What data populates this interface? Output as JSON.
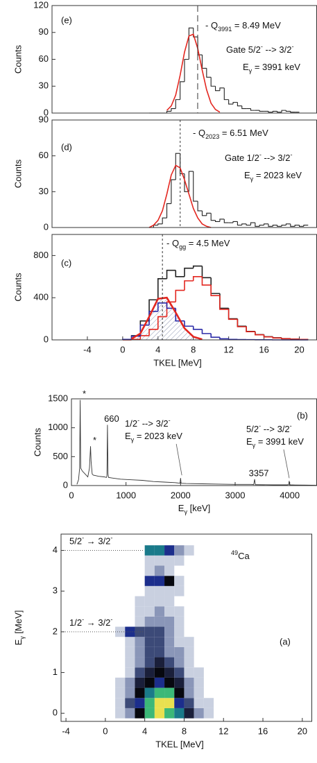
{
  "chart_data": [
    {
      "type": "histogram",
      "label": "(e)",
      "ylabel": "Counts",
      "xlim": [
        -8,
        22
      ],
      "ylim": [
        0,
        120
      ],
      "yticks": [
        0,
        30,
        60,
        90,
        120
      ],
      "bins": [
        3,
        3.5,
        4,
        4.5,
        5,
        5.5,
        6,
        6.5,
        7,
        7.5,
        8,
        8.5,
        9,
        9.5,
        10,
        10.5,
        11,
        11.5,
        12,
        12.5,
        13,
        13.5,
        14,
        14.5,
        15,
        15.5,
        16,
        16.5,
        17,
        17.5,
        18,
        18.5,
        19,
        19.5,
        20
      ],
      "series": [
        {
          "color": "#222222",
          "values": [
            0,
            0,
            0,
            0,
            2,
            5,
            15,
            35,
            60,
            95,
            85,
            65,
            50,
            40,
            30,
            25,
            28,
            15,
            10,
            12,
            8,
            5,
            5,
            3,
            3,
            2,
            2,
            1,
            2,
            1,
            3,
            2,
            1,
            1
          ]
        }
      ],
      "fits": [
        {
          "color": "#e3261f",
          "x": [
            5,
            5.5,
            6,
            6.5,
            7,
            7.5,
            8,
            8.5,
            9,
            9.5,
            10,
            10.5,
            11
          ],
          "values": [
            3,
            8,
            20,
            42,
            68,
            86,
            88,
            72,
            48,
            26,
            11,
            4,
            1
          ]
        }
      ],
      "marker": {
        "value": 8.49,
        "dash": "9,5"
      },
      "annotations": [
        {
          "parts": [
            "- Q",
            "3991",
            " = 8.49 MeV"
          ]
        },
        {
          "parts": [
            "Gate 5/2",
            "-",
            " --> 3/2",
            "-"
          ]
        },
        {
          "parts": [
            "E",
            "γ",
            " = 3991 keV"
          ]
        }
      ]
    },
    {
      "type": "histogram",
      "label": "(d)",
      "ylabel": "Counts",
      "xlim": [
        -8,
        22
      ],
      "ylim": [
        0,
        90
      ],
      "yticks": [
        0,
        30,
        60,
        90
      ],
      "bins": [
        3,
        3.5,
        4,
        4.5,
        5,
        5.5,
        6,
        6.5,
        7,
        7.5,
        8,
        8.5,
        9,
        9.5,
        10,
        10.5,
        11,
        11.5,
        12,
        12.5,
        13,
        13.5,
        14,
        14.5,
        15,
        15.5,
        16,
        16.5,
        17,
        17.5,
        18,
        18.5,
        19,
        19.5,
        20,
        20.5,
        21
      ],
      "series": [
        {
          "color": "#222222",
          "values": [
            0,
            2,
            3,
            8,
            20,
            40,
            62,
            45,
            30,
            47,
            22,
            14,
            10,
            12,
            6,
            5,
            7,
            4,
            4,
            5,
            2,
            3,
            2,
            4,
            1,
            2,
            3,
            1,
            2,
            1,
            2,
            3,
            1,
            2,
            1,
            2
          ]
        }
      ],
      "fits": [
        {
          "color": "#e3261f",
          "x": [
            3,
            3.5,
            4,
            4.5,
            5,
            5.5,
            6,
            6.5,
            7,
            7.5,
            8,
            8.5,
            9,
            9.5,
            10
          ],
          "values": [
            0,
            2,
            6,
            14,
            28,
            44,
            52,
            50,
            40,
            28,
            16,
            8,
            3,
            1,
            0
          ]
        }
      ],
      "marker": {
        "value": 6.51,
        "dash": "3,3"
      },
      "annotations": [
        {
          "parts": [
            "- Q",
            "2023",
            " = 6.51 MeV"
          ]
        },
        {
          "parts": [
            "Gate 1/2",
            "-",
            " --> 3/2",
            "-"
          ]
        },
        {
          "parts": [
            "E",
            "γ",
            " = 2023 keV"
          ]
        }
      ]
    },
    {
      "type": "histogram",
      "label": "(c)",
      "ylabel": "Counts",
      "xlabel": "TKEL [MeV]",
      "xlim": [
        -8,
        22
      ],
      "ylim": [
        0,
        1000
      ],
      "yticks": [
        0,
        400,
        800
      ],
      "xticks": [
        -4,
        0,
        4,
        8,
        12,
        16,
        20
      ],
      "bins": [
        0,
        1,
        2,
        3,
        4,
        5,
        6,
        7,
        8,
        9,
        10,
        11,
        12,
        13,
        14,
        15,
        16,
        17,
        18,
        19,
        20,
        21
      ],
      "series": [
        {
          "color": "#222222",
          "values": [
            5,
            40,
            180,
            380,
            580,
            660,
            600,
            680,
            700,
            590,
            440,
            300,
            200,
            130,
            80,
            50,
            30,
            20,
            12,
            8,
            5
          ]
        },
        {
          "color": "#e3261f",
          "values": [
            0,
            5,
            40,
            100,
            220,
            360,
            470,
            560,
            600,
            520,
            420,
            290,
            195,
            125,
            78,
            48,
            28,
            18,
            11,
            7,
            5
          ]
        },
        {
          "color": "#2b2ba8",
          "values": [
            5,
            35,
            140,
            270,
            350,
            300,
            180,
            130,
            100,
            60,
            25,
            10,
            5,
            3,
            2,
            1,
            1,
            0,
            0,
            0,
            0
          ]
        }
      ],
      "fits": [
        {
          "color": "#e3261f",
          "hatched": true,
          "x": [
            1,
            2,
            3,
            4,
            5,
            6,
            7,
            8,
            9
          ],
          "values": [
            10,
            60,
            220,
            390,
            400,
            260,
            110,
            30,
            5
          ]
        }
      ],
      "marker": {
        "value": 4.5,
        "dash": "3,3"
      },
      "annotations": [
        {
          "parts": [
            "- Q",
            "gg",
            " = 4.5 MeV"
          ]
        }
      ]
    },
    {
      "type": "line",
      "label": "(b)",
      "ylabel": "Counts",
      "xlabel": [
        "E",
        "γ",
        " [keV]"
      ],
      "xlim": [
        0,
        4500
      ],
      "ylim": [
        0,
        1500
      ],
      "xticks": [
        0,
        1000,
        2000,
        3000,
        4000
      ],
      "yticks": [
        0,
        500,
        1000,
        1500
      ],
      "color": "#333333",
      "x": [
        100,
        130,
        150,
        160,
        170,
        200,
        250,
        300,
        330,
        350,
        360,
        380,
        400,
        450,
        500,
        600,
        640,
        650,
        660,
        670,
        680,
        750,
        900,
        1100,
        1300,
        1500,
        1700,
        1900,
        1990,
        2000,
        2010,
        2100,
        2400,
        2700,
        3000,
        3300,
        3340,
        3357,
        3370,
        3400,
        3700,
        3950,
        3980,
        3991,
        4000,
        4010,
        4100,
        4300,
        4500
      ],
      "values": [
        20,
        100,
        300,
        1480,
        300,
        250,
        200,
        150,
        300,
        680,
        420,
        200,
        180,
        170,
        160,
        150,
        140,
        160,
        1050,
        200,
        140,
        130,
        110,
        100,
        90,
        70,
        60,
        50,
        40,
        130,
        40,
        35,
        30,
        25,
        20,
        20,
        15,
        110,
        15,
        15,
        12,
        12,
        15,
        80,
        20,
        12,
        10,
        8,
        5
      ],
      "peaks": [
        {
          "label": "*",
          "x": 160
        },
        {
          "label": "*",
          "x": 350
        },
        {
          "label": "660",
          "x": 660
        },
        {
          "label": "3357",
          "x": 3357
        }
      ],
      "transition_color": "#2b2ba8",
      "transitions": [
        {
          "x": 2023,
          "lines": [
            [
              "1/2",
              "-",
              " --> 3/2",
              "-"
            ],
            [
              "E",
              "γ",
              " = 2023 keV"
            ]
          ]
        },
        {
          "x": 3991,
          "lines": [
            [
              "5/2",
              "-",
              " --> 3/2",
              "-"
            ],
            [
              "E",
              "γ",
              " = 3991 keV"
            ]
          ]
        }
      ]
    },
    {
      "type": "heatmap",
      "label": "(a)",
      "xlabel": "TKEL  [MeV]",
      "ylabel": [
        "E",
        "γ",
        "  [MeV]"
      ],
      "xlim": [
        -4.5,
        21
      ],
      "ylim": [
        -0.2,
        4.4
      ],
      "xticks": [
        -4,
        0,
        4,
        8,
        12,
        16,
        20
      ],
      "yticks": [
        0,
        1,
        2,
        3,
        4
      ],
      "nucleus": [
        "49",
        "Ca"
      ],
      "lines": [
        {
          "y": 4,
          "parts": [
            "5/2",
            "-",
            " → 3/2",
            "-"
          ]
        },
        {
          "y": 2,
          "parts": [
            "1/2",
            "-",
            " → 3/2",
            "-"
          ]
        }
      ],
      "colors": [
        "none",
        "#c9d0e0",
        "#8a96b8",
        "#3c4a78",
        "#1a1f3a",
        "#07080f",
        "#1c2e8c",
        "#1a7a8a",
        "#3cb878",
        "#e8e050"
      ],
      "xbins": [
        0,
        1,
        2,
        3,
        4,
        5,
        6,
        7,
        8,
        9,
        10,
        11
      ],
      "ybins": [
        -0.125,
        0.125,
        0.375,
        0.625,
        0.875,
        1.125,
        1.375,
        1.625,
        1.875,
        2.125,
        2.375,
        2.625,
        2.875,
        3.125,
        3.375,
        3.625,
        3.875,
        4.125
      ],
      "z": [
        [
          0,
          1,
          2,
          5,
          8,
          9,
          8,
          7,
          4,
          2,
          1
        ],
        [
          0,
          1,
          3,
          6,
          8,
          9,
          9,
          6,
          3,
          1,
          1
        ],
        [
          0,
          1,
          2,
          5,
          7,
          8,
          8,
          5,
          2,
          1,
          0
        ],
        [
          0,
          1,
          2,
          4,
          5,
          6,
          5,
          4,
          2,
          1,
          0
        ],
        [
          0,
          0,
          1,
          3,
          4,
          5,
          4,
          3,
          1,
          1,
          0
        ],
        [
          0,
          0,
          1,
          2,
          3,
          4,
          3,
          2,
          1,
          0,
          0
        ],
        [
          0,
          0,
          1,
          2,
          3,
          3,
          2,
          2,
          1,
          0,
          0
        ],
        [
          0,
          0,
          1,
          2,
          3,
          3,
          2,
          1,
          1,
          0,
          0
        ],
        [
          0,
          1,
          6,
          3,
          3,
          3,
          2,
          1,
          0,
          0,
          0
        ],
        [
          0,
          0,
          0,
          1,
          2,
          2,
          2,
          1,
          0,
          0,
          0
        ],
        [
          0,
          0,
          0,
          1,
          1,
          2,
          1,
          1,
          0,
          0,
          0
        ],
        [
          0,
          0,
          0,
          1,
          1,
          1,
          1,
          0,
          0,
          0,
          0
        ],
        [
          0,
          0,
          0,
          0,
          1,
          1,
          1,
          1,
          0,
          0,
          0
        ],
        [
          0,
          0,
          0,
          0,
          6,
          6,
          5,
          1,
          0,
          0,
          0
        ],
        [
          0,
          0,
          0,
          0,
          1,
          2,
          1,
          0,
          0,
          0,
          0
        ],
        [
          0,
          0,
          0,
          0,
          1,
          1,
          1,
          1,
          0,
          0,
          0
        ],
        [
          0,
          0,
          0,
          0,
          7,
          7,
          6,
          2,
          1,
          0,
          0
        ]
      ]
    }
  ]
}
